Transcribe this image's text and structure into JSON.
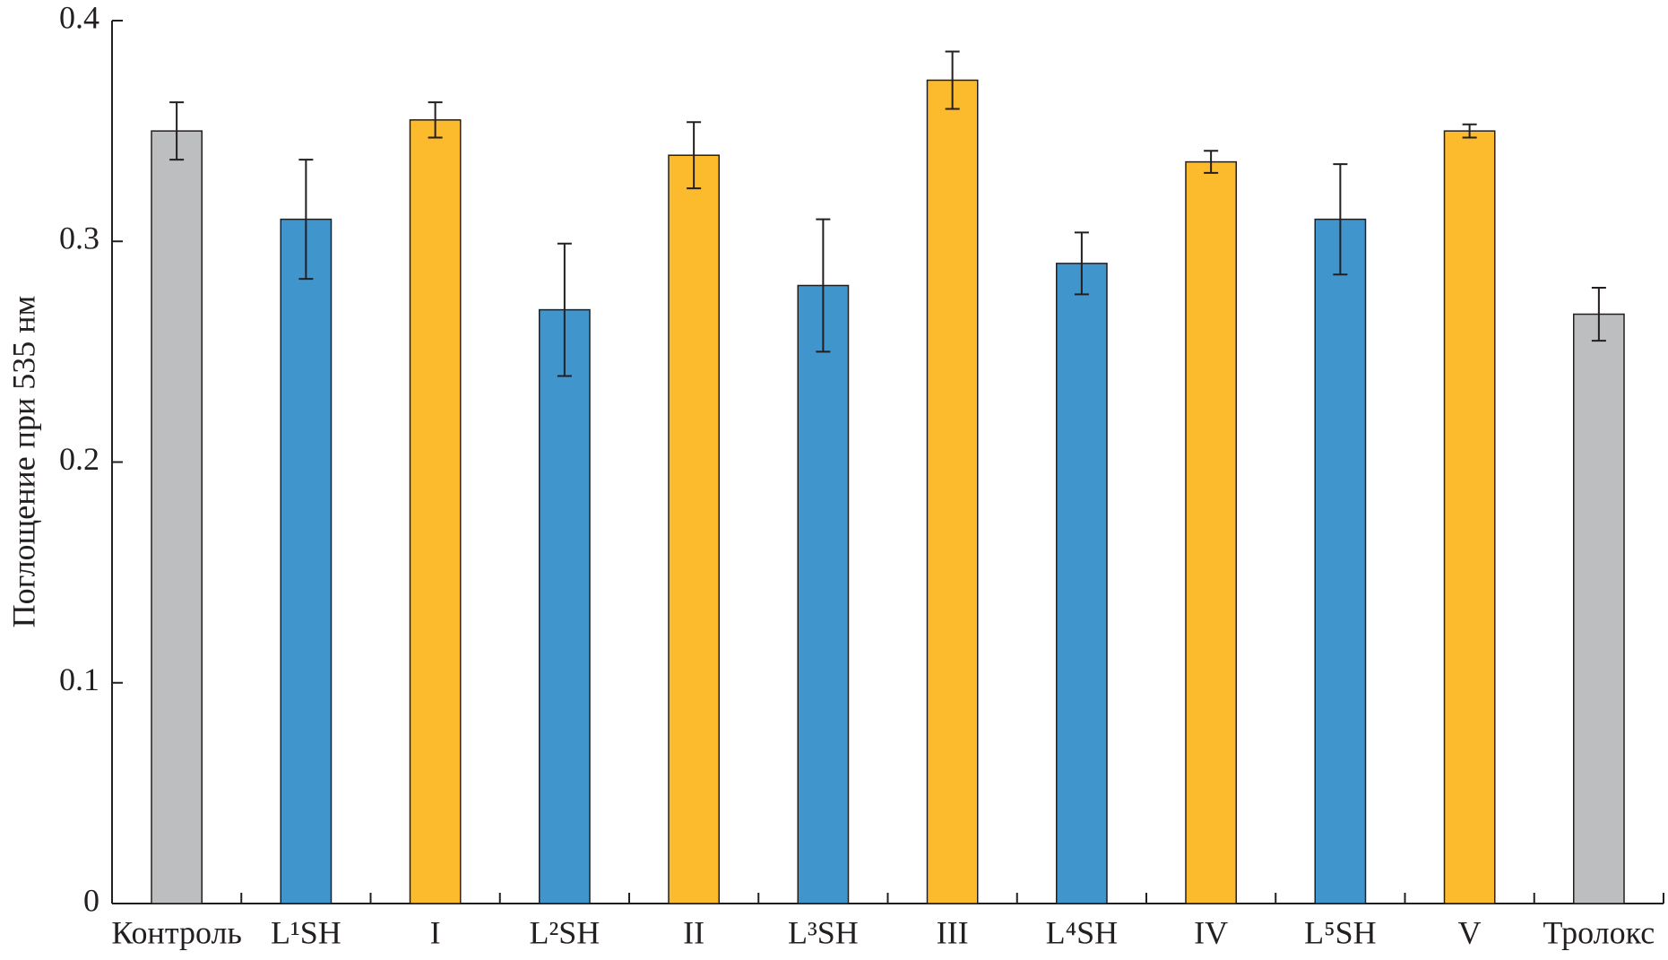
{
  "chart_data": {
    "type": "bar",
    "y_label": "Поглощение при 535 нм",
    "categories": [
      "Контроль",
      "L¹SH",
      "I",
      "L²SH",
      "II",
      "L³SH",
      "III",
      "L⁴SH",
      "IV",
      "L⁵SH",
      "V",
      "Тролокс"
    ],
    "values": [
      0.35,
      0.31,
      0.355,
      0.269,
      0.339,
      0.28,
      0.373,
      0.29,
      0.336,
      0.31,
      0.35,
      0.267
    ],
    "errors": [
      0.013,
      0.027,
      0.008,
      0.03,
      0.015,
      0.03,
      0.013,
      0.014,
      0.005,
      0.025,
      0.003,
      0.012
    ],
    "colors": [
      "#bcbec0",
      "#4095cd",
      "#fbbb2d",
      "#4095cd",
      "#fbbb2d",
      "#4095cd",
      "#fbbb2d",
      "#4095cd",
      "#fbbb2d",
      "#4095cd",
      "#fbbb2d",
      "#bcbec0"
    ],
    "ylim": [
      0,
      0.4
    ],
    "yticks": [
      0,
      0.1,
      0.2,
      0.3,
      0.4
    ]
  }
}
